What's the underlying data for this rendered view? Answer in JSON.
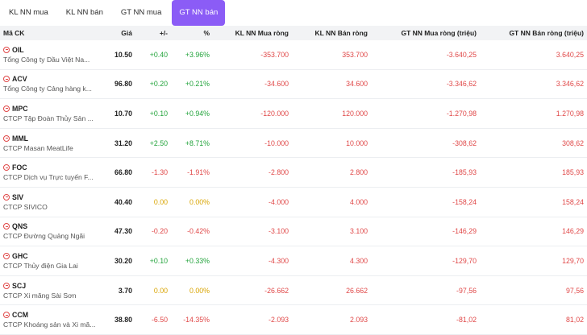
{
  "tabs": [
    "KL NN mua",
    "KL NN bán",
    "GT NN mua",
    "GT NN bán"
  ],
  "active_tab": 3,
  "columns": {
    "code": "Mã CK",
    "price": "Giá",
    "change": "+/-",
    "pct": "%",
    "kl_buy_net": "KL NN Mua ròng",
    "kl_sell_net": "KL NN Bán ròng",
    "gt_buy_net": "GT NN Mua ròng (triệu)",
    "gt_sell_net": "GT NN Bán ròng (triệu)"
  },
  "rows": [
    {
      "symbol": "OIL",
      "name": "Tổng Công ty Dầu Việt Na...",
      "price": "10.50",
      "change": "+0.40",
      "pct": "+3.96%",
      "dir": "up",
      "kl_buy": "-353.700",
      "kl_sell": "353.700",
      "gt_buy": "-3.640,25",
      "gt_sell": "3.640,25"
    },
    {
      "symbol": "ACV",
      "name": "Tổng Công ty Cảng hàng k...",
      "price": "96.80",
      "change": "+0.20",
      "pct": "+0.21%",
      "dir": "up",
      "kl_buy": "-34.600",
      "kl_sell": "34.600",
      "gt_buy": "-3.346,62",
      "gt_sell": "3.346,62"
    },
    {
      "symbol": "MPC",
      "name": "CTCP Tập Đoàn Thủy Sản ...",
      "price": "10.70",
      "change": "+0.10",
      "pct": "+0.94%",
      "dir": "up",
      "kl_buy": "-120.000",
      "kl_sell": "120.000",
      "gt_buy": "-1.270,98",
      "gt_sell": "1.270,98"
    },
    {
      "symbol": "MML",
      "name": "CTCP Masan MeatLife",
      "price": "31.20",
      "change": "+2.50",
      "pct": "+8.71%",
      "dir": "up",
      "kl_buy": "-10.000",
      "kl_sell": "10.000",
      "gt_buy": "-308,62",
      "gt_sell": "308,62"
    },
    {
      "symbol": "FOC",
      "name": "CTCP Dịch vụ Trực tuyến F...",
      "price": "66.80",
      "change": "-1.30",
      "pct": "-1.91%",
      "dir": "down",
      "kl_buy": "-2.800",
      "kl_sell": "2.800",
      "gt_buy": "-185,93",
      "gt_sell": "185,93"
    },
    {
      "symbol": "SIV",
      "name": "CTCP SIVICO",
      "price": "40.40",
      "change": "0.00",
      "pct": "0.00%",
      "dir": "flat",
      "kl_buy": "-4.000",
      "kl_sell": "4.000",
      "gt_buy": "-158,24",
      "gt_sell": "158,24"
    },
    {
      "symbol": "QNS",
      "name": "CTCP Đường Quảng Ngãi",
      "price": "47.30",
      "change": "-0.20",
      "pct": "-0.42%",
      "dir": "down",
      "kl_buy": "-3.100",
      "kl_sell": "3.100",
      "gt_buy": "-146,29",
      "gt_sell": "146,29"
    },
    {
      "symbol": "GHC",
      "name": "CTCP Thủy điện Gia Lai",
      "price": "30.20",
      "change": "+0.10",
      "pct": "+0.33%",
      "dir": "up",
      "kl_buy": "-4.300",
      "kl_sell": "4.300",
      "gt_buy": "-129,70",
      "gt_sell": "129,70"
    },
    {
      "symbol": "SCJ",
      "name": "CTCP Xi măng Sài Sơn",
      "price": "3.70",
      "change": "0.00",
      "pct": "0.00%",
      "dir": "flat",
      "kl_buy": "-26.662",
      "kl_sell": "26.662",
      "gt_buy": "-97,56",
      "gt_sell": "97,56"
    },
    {
      "symbol": "CCM",
      "name": "CTCP Khoáng sản và Xi mă...",
      "price": "38.80",
      "change": "-6.50",
      "pct": "-14.35%",
      "dir": "down",
      "kl_buy": "-2.093",
      "kl_sell": "2.093",
      "gt_buy": "-81,02",
      "gt_sell": "81,02"
    }
  ],
  "colors": {
    "accent": "#8b5cf6",
    "up": "#22a33b",
    "down": "#e04848",
    "flat": "#d9a400"
  },
  "icons": {
    "row_icon": "minus-circle-icon"
  }
}
